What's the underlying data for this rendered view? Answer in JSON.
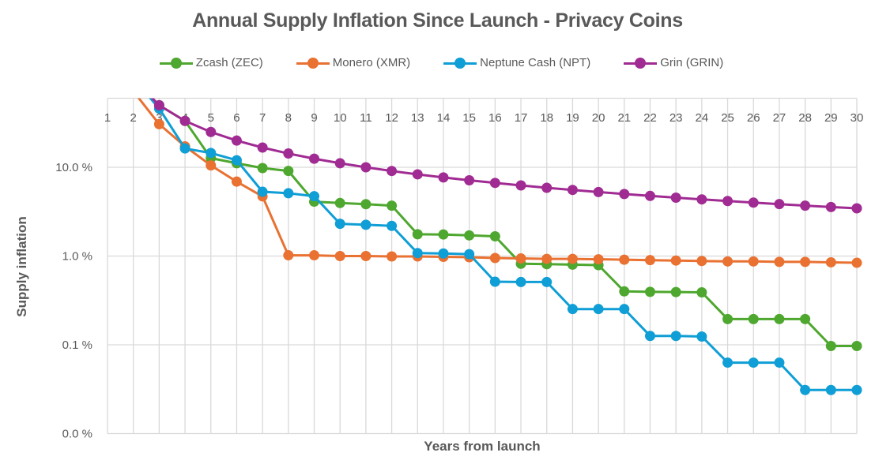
{
  "chart_data": {
    "type": "line",
    "title": "Annual Supply Inflation Since Launch - Privacy Coins",
    "xlabel": "Years from launch",
    "ylabel": "Supply inflation",
    "yscale": "log",
    "ylim": [
      0.01,
      60
    ],
    "xlim": [
      1,
      30
    ],
    "grid": true,
    "legend_position": "top",
    "x": [
      1,
      2,
      3,
      4,
      5,
      6,
      7,
      8,
      9,
      10,
      11,
      12,
      13,
      14,
      15,
      16,
      17,
      18,
      19,
      20,
      21,
      22,
      23,
      24,
      25,
      26,
      27,
      28,
      29,
      30
    ],
    "y_ticks": [
      {
        "value": 0.01,
        "label": "0.0 %"
      },
      {
        "value": 0.1,
        "label": "0.1 %"
      },
      {
        "value": 1,
        "label": "1.0 %"
      },
      {
        "value": 10,
        "label": "10.0 %"
      }
    ],
    "series": [
      {
        "name": "Zcash (ZEC)",
        "color": "#4ea72e",
        "values": [
          null,
          null,
          50,
          33.3,
          12.7,
          11.1,
          9.8,
          9.1,
          4.1,
          3.96,
          3.84,
          3.7,
          1.76,
          1.75,
          1.71,
          1.67,
          0.82,
          0.81,
          0.8,
          0.79,
          0.4,
          0.395,
          0.393,
          0.39,
          0.195,
          0.195,
          0.195,
          0.195,
          0.097,
          0.097
        ]
      },
      {
        "name": "Monero (XMR)",
        "color": "#e97132",
        "values": [
          null,
          72,
          30.6,
          17.2,
          10.5,
          6.9,
          4.7,
          1.02,
          1.02,
          1.0,
          1.0,
          0.99,
          0.99,
          0.98,
          0.97,
          0.95,
          0.94,
          0.93,
          0.93,
          0.92,
          0.91,
          0.9,
          0.89,
          0.88,
          0.87,
          0.87,
          0.86,
          0.86,
          0.85,
          0.84
        ]
      },
      {
        "name": "Neptune Cash (NPT)",
        "color": "#0f9ed5",
        "values": [
          null,
          100,
          46,
          16.3,
          14.5,
          12.0,
          5.3,
          5.1,
          4.73,
          2.31,
          2.25,
          2.19,
          1.08,
          1.07,
          1.05,
          0.514,
          0.51,
          0.51,
          0.253,
          0.253,
          0.253,
          0.126,
          0.126,
          0.124,
          0.063,
          0.063,
          0.063,
          0.031,
          0.031,
          0.031
        ]
      },
      {
        "name": "Grin (GRIN)",
        "color": "#a02b93",
        "values": [
          null,
          100,
          50,
          33.3,
          25,
          20,
          16.7,
          14.3,
          12.5,
          11.1,
          10,
          9.09,
          8.33,
          7.69,
          7.14,
          6.67,
          6.25,
          5.88,
          5.56,
          5.26,
          5,
          4.76,
          4.55,
          4.35,
          4.17,
          4,
          3.85,
          3.7,
          3.57,
          3.45
        ]
      }
    ]
  }
}
